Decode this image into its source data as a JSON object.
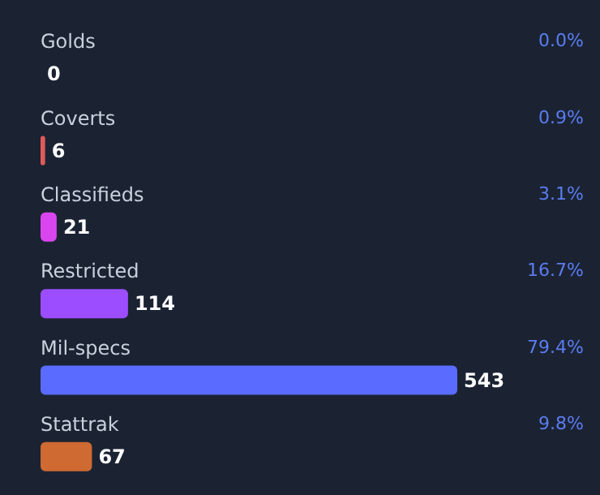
{
  "chart_data": {
    "type": "bar",
    "orientation": "horizontal",
    "data_labels": true,
    "categories": [
      "Golds",
      "Coverts",
      "Classifieds",
      "Restricted",
      "Mil-specs",
      "Stattrak"
    ],
    "values": [
      0,
      6,
      21,
      114,
      543,
      67
    ],
    "colors": [
      "#e4ae39",
      "#e05a5a",
      "#d946ef",
      "#9b4dff",
      "#5a6bff",
      "#cf6a32"
    ],
    "annotations": [
      "0.0%",
      "0.9%",
      "3.1%",
      "16.7%",
      "79.4%",
      "9.8%"
    ]
  }
}
